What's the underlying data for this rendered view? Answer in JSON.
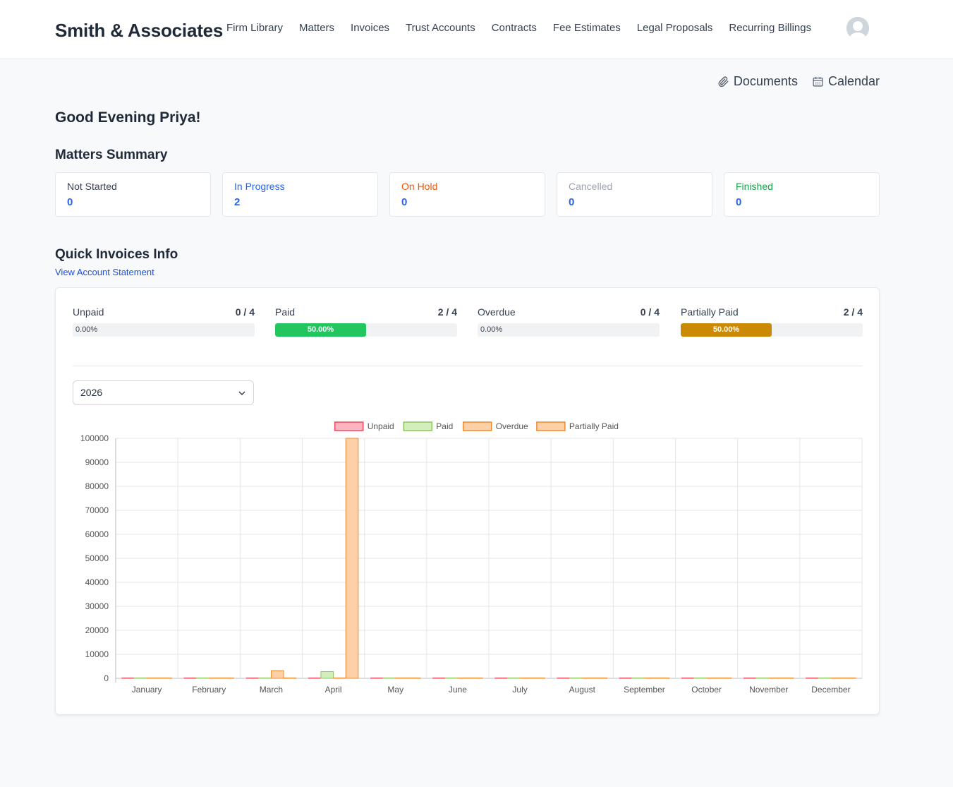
{
  "brand": "Smith & Associates",
  "nav": [
    "Firm Library",
    "Matters",
    "Invoices",
    "Trust Accounts",
    "Contracts",
    "Fee Estimates",
    "Legal Proposals",
    "Recurring Billings"
  ],
  "avatar_icon": "user-avatar-icon",
  "toolbar": {
    "documents_label": "Documents",
    "documents_icon": "paperclip-icon",
    "calendar_label": "Calendar",
    "calendar_icon": "calendar-icon"
  },
  "greeting": "Good Evening Priya!",
  "matters_summary": {
    "title": "Matters Summary",
    "cards": [
      {
        "label": "Not Started",
        "count": "0",
        "color": "#374151"
      },
      {
        "label": "In Progress",
        "count": "2",
        "color": "#2563eb"
      },
      {
        "label": "On Hold",
        "count": "0",
        "color": "#ea580c"
      },
      {
        "label": "Cancelled",
        "count": "0",
        "color": "#9ca3af"
      },
      {
        "label": "Finished",
        "count": "0",
        "color": "#16a34a"
      }
    ]
  },
  "invoices": {
    "title": "Quick Invoices Info",
    "statement_link": "View Account Statement",
    "stats": [
      {
        "label": "Unpaid",
        "fraction": "0 / 4",
        "percent_text": "0.00%",
        "percent": 0,
        "color": "#ef4444"
      },
      {
        "label": "Paid",
        "fraction": "2 / 4",
        "percent_text": "50.00%",
        "percent": 50,
        "color": "#22c55e"
      },
      {
        "label": "Overdue",
        "fraction": "0 / 4",
        "percent_text": "0.00%",
        "percent": 0,
        "color": "#f97316"
      },
      {
        "label": "Partially Paid",
        "fraction": "2 / 4",
        "percent_text": "50.00%",
        "percent": 50,
        "color": "#ca8a04"
      }
    ],
    "year_selected": "2026"
  },
  "chart_data": {
    "type": "bar",
    "categories": [
      "January",
      "February",
      "March",
      "April",
      "May",
      "June",
      "July",
      "August",
      "September",
      "October",
      "November",
      "December"
    ],
    "series": [
      {
        "name": "Unpaid",
        "values": [
          0,
          0,
          0,
          0,
          0,
          0,
          0,
          0,
          0,
          0,
          0,
          0
        ],
        "fill": "#fbb5c0",
        "stroke": "#ef4a60"
      },
      {
        "name": "Paid",
        "values": [
          0,
          0,
          0,
          2800,
          0,
          0,
          0,
          0,
          0,
          0,
          0,
          0
        ],
        "fill": "#d4edbd",
        "stroke": "#8cc65e"
      },
      {
        "name": "Overdue",
        "values": [
          0,
          0,
          3200,
          0,
          0,
          0,
          0,
          0,
          0,
          0,
          0,
          0
        ],
        "fill": "#fdd0a8",
        "stroke": "#ef8a2c"
      },
      {
        "name": "Partially Paid",
        "values": [
          0,
          0,
          0,
          100000,
          0,
          0,
          0,
          0,
          0,
          0,
          0,
          0
        ],
        "fill": "#fdd0a8",
        "stroke": "#ef8a2c"
      }
    ],
    "ylim": [
      0,
      100000
    ],
    "yticks": [
      "0",
      "10000",
      "20000",
      "30000",
      "40000",
      "50000",
      "60000",
      "70000",
      "80000",
      "90000",
      "100000"
    ],
    "grid": true,
    "legend_position": "top"
  }
}
